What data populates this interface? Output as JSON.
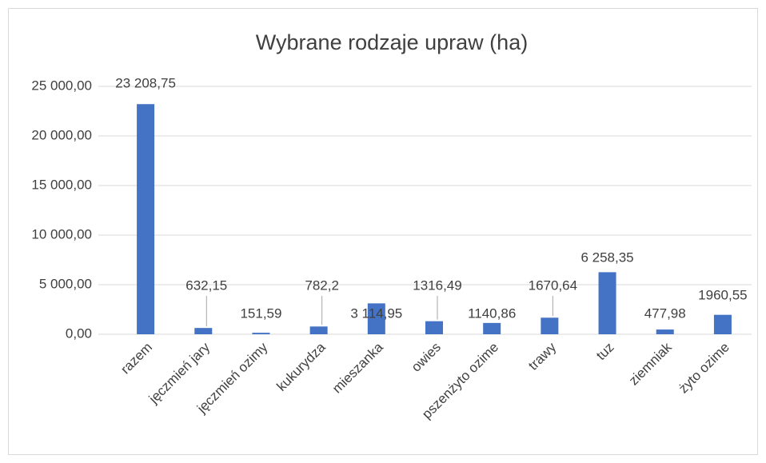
{
  "chart_data": {
    "type": "bar",
    "title": "Wybrane rodzaje upraw (ha)",
    "categories": [
      "razem",
      "jęczmień jary",
      "jęczmień ozimy",
      "kukurydza",
      "mieszanka",
      "owies",
      "pszenżyto ozime",
      "trawy",
      "tuz",
      "ziemniak",
      "żyto ozime"
    ],
    "values": [
      23208.75,
      632.15,
      151.59,
      782.2,
      3114.95,
      1316.49,
      1140.86,
      1670.64,
      6258.35,
      477.98,
      1960.55
    ],
    "value_labels": [
      "23 208,75",
      "632,15",
      "151,59",
      "782,2",
      "3 114,95",
      "1316,49",
      "1140,86",
      "1670,64",
      "6 258,35",
      "477,98",
      "1960,55"
    ],
    "color": "#4472c4",
    "ylim": [
      0,
      25000
    ],
    "yticks": [
      {
        "value": 0,
        "label": "0,00"
      },
      {
        "value": 5000,
        "label": "5 000,00"
      },
      {
        "value": 10000,
        "label": "10 000,00"
      },
      {
        "value": 15000,
        "label": "15 000,00"
      },
      {
        "value": 20000,
        "label": "20 000,00"
      },
      {
        "value": 25000,
        "label": "25 000,00"
      }
    ],
    "grid": true
  }
}
